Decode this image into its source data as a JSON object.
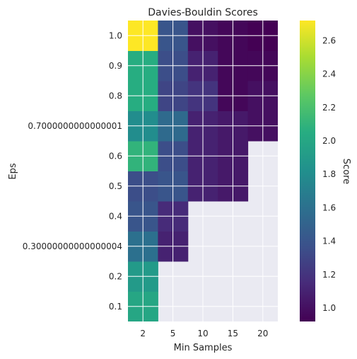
{
  "chart_data": {
    "type": "heatmap",
    "title": "Davies-Bouldin Scores",
    "xlabel": "Min Samples",
    "ylabel": "Eps",
    "x_ticks": [
      "2",
      "5",
      "10",
      "15",
      "20"
    ],
    "y_ticks": [
      "0.1",
      "0.2",
      "0.30000000000000004",
      "0.4",
      "0.5",
      "0.6",
      "0.7000000000000001",
      "0.8",
      "0.9",
      "1.0"
    ],
    "colorbar": {
      "label": "Score",
      "ticks": [
        "1.0",
        "1.2",
        "1.4",
        "1.6",
        "1.8",
        "2.0",
        "2.2",
        "2.4",
        "2.6"
      ],
      "range": [
        0.92,
        2.72
      ],
      "colormap": "viridis"
    },
    "value_grid_note": "rows ordered bottom (0.1) to top (1.0); columns follow x_ticks; null = no value",
    "values": [
      [
        2.0,
        null,
        null,
        null,
        null
      ],
      [
        1.9,
        null,
        null,
        null,
        null
      ],
      [
        1.6,
        1.1,
        null,
        null,
        null
      ],
      [
        1.4,
        1.15,
        null,
        null,
        null
      ],
      [
        1.35,
        1.4,
        1.1,
        1.05,
        null
      ],
      [
        2.1,
        1.35,
        1.1,
        1.05,
        null
      ],
      [
        1.8,
        1.55,
        1.1,
        1.05,
        1.0
      ],
      [
        2.05,
        1.3,
        1.2,
        0.95,
        1.0
      ],
      [
        2.05,
        1.35,
        1.1,
        0.95,
        0.95
      ],
      [
        2.72,
        1.4,
        1.0,
        0.95,
        0.92
      ]
    ],
    "grid": true,
    "background_color": "#eaeaf2"
  }
}
